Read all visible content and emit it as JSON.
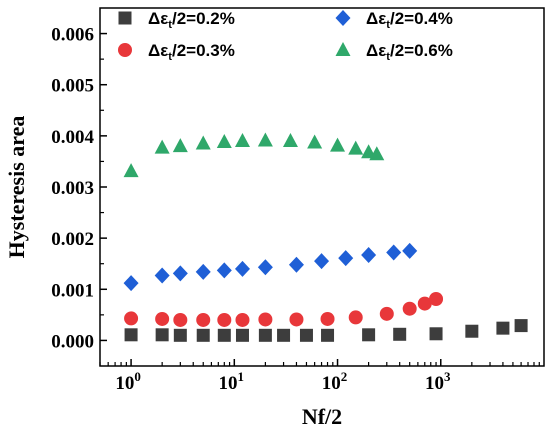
{
  "chart_data": {
    "type": "scatter",
    "title": "",
    "xlabel": "Nf/2",
    "ylabel": "Hysteresis area",
    "x_scale": "log",
    "xlim": [
      0.5,
      10000
    ],
    "ylim": [
      -0.0005,
      0.0065
    ],
    "x_ticks": [
      {
        "value": 1,
        "base": "10",
        "exp": "0"
      },
      {
        "value": 10,
        "base": "10",
        "exp": "1"
      },
      {
        "value": 100,
        "base": "10",
        "exp": "2"
      },
      {
        "value": 1000,
        "base": "10",
        "exp": "3"
      }
    ],
    "y_ticks": [
      {
        "value": 0,
        "label": "0.000"
      },
      {
        "value": 0.001,
        "label": "0.001"
      },
      {
        "value": 0.002,
        "label": "0.002"
      },
      {
        "value": 0.003,
        "label": "0.003"
      },
      {
        "value": 0.004,
        "label": "0.004"
      },
      {
        "value": 0.005,
        "label": "0.005"
      },
      {
        "value": 0.006,
        "label": "0.006"
      }
    ],
    "grid": false,
    "legend_position": "top",
    "series": [
      {
        "name": "Δεt/2=0.2%",
        "legend": {
          "pre": "Δε",
          "sub": "t",
          "post": "/2=0.2%"
        },
        "marker": "square",
        "color": "#3d3d3d",
        "points": [
          [
            1,
            0.00011
          ],
          [
            2,
            0.00011
          ],
          [
            3,
            0.0001
          ],
          [
            5,
            0.0001
          ],
          [
            8,
            0.0001
          ],
          [
            12,
            0.0001
          ],
          [
            20,
            0.0001
          ],
          [
            30,
            0.0001
          ],
          [
            50,
            0.0001
          ],
          [
            80,
            0.0001
          ],
          [
            200,
            0.00011
          ],
          [
            400,
            0.00012
          ],
          [
            900,
            0.00013
          ],
          [
            2000,
            0.00018
          ],
          [
            4000,
            0.00024
          ],
          [
            6000,
            0.00029
          ]
        ]
      },
      {
        "name": "Δεt/2=0.3%",
        "legend": {
          "pre": "Δε",
          "sub": "t",
          "post": "/2=0.3%"
        },
        "marker": "circle",
        "color": "#e8373a",
        "points": [
          [
            1,
            0.00043
          ],
          [
            2,
            0.00042
          ],
          [
            3,
            0.0004
          ],
          [
            5,
            0.0004
          ],
          [
            8,
            0.0004
          ],
          [
            12,
            0.0004
          ],
          [
            20,
            0.00041
          ],
          [
            40,
            0.00041
          ],
          [
            80,
            0.00042
          ],
          [
            150,
            0.00045
          ],
          [
            300,
            0.00052
          ],
          [
            500,
            0.00062
          ],
          [
            700,
            0.00072
          ],
          [
            900,
            0.00081
          ]
        ]
      },
      {
        "name": "Δεt/2=0.4%",
        "legend": {
          "pre": "Δε",
          "sub": "t",
          "post": "/2=0.4%"
        },
        "marker": "diamond",
        "color": "#1f5fd6",
        "points": [
          [
            1,
            0.00112
          ],
          [
            2,
            0.00127
          ],
          [
            3,
            0.00131
          ],
          [
            5,
            0.00134
          ],
          [
            8,
            0.00137
          ],
          [
            12,
            0.0014
          ],
          [
            20,
            0.00143
          ],
          [
            40,
            0.00148
          ],
          [
            70,
            0.00155
          ],
          [
            120,
            0.00161
          ],
          [
            200,
            0.00167
          ],
          [
            350,
            0.00172
          ],
          [
            500,
            0.00175
          ]
        ]
      },
      {
        "name": "Δεt/2=0.6%",
        "legend": {
          "pre": "Δε",
          "sub": "t",
          "post": "/2=0.6%"
        },
        "marker": "triangle",
        "color": "#2fa86a",
        "points": [
          [
            1,
            0.00331
          ],
          [
            2,
            0.00377
          ],
          [
            3,
            0.0038
          ],
          [
            5,
            0.00385
          ],
          [
            8,
            0.00388
          ],
          [
            12,
            0.0039
          ],
          [
            20,
            0.00391
          ],
          [
            35,
            0.0039
          ],
          [
            60,
            0.00387
          ],
          [
            100,
            0.00381
          ],
          [
            150,
            0.00375
          ],
          [
            200,
            0.00368
          ],
          [
            240,
            0.00364
          ]
        ]
      }
    ]
  }
}
